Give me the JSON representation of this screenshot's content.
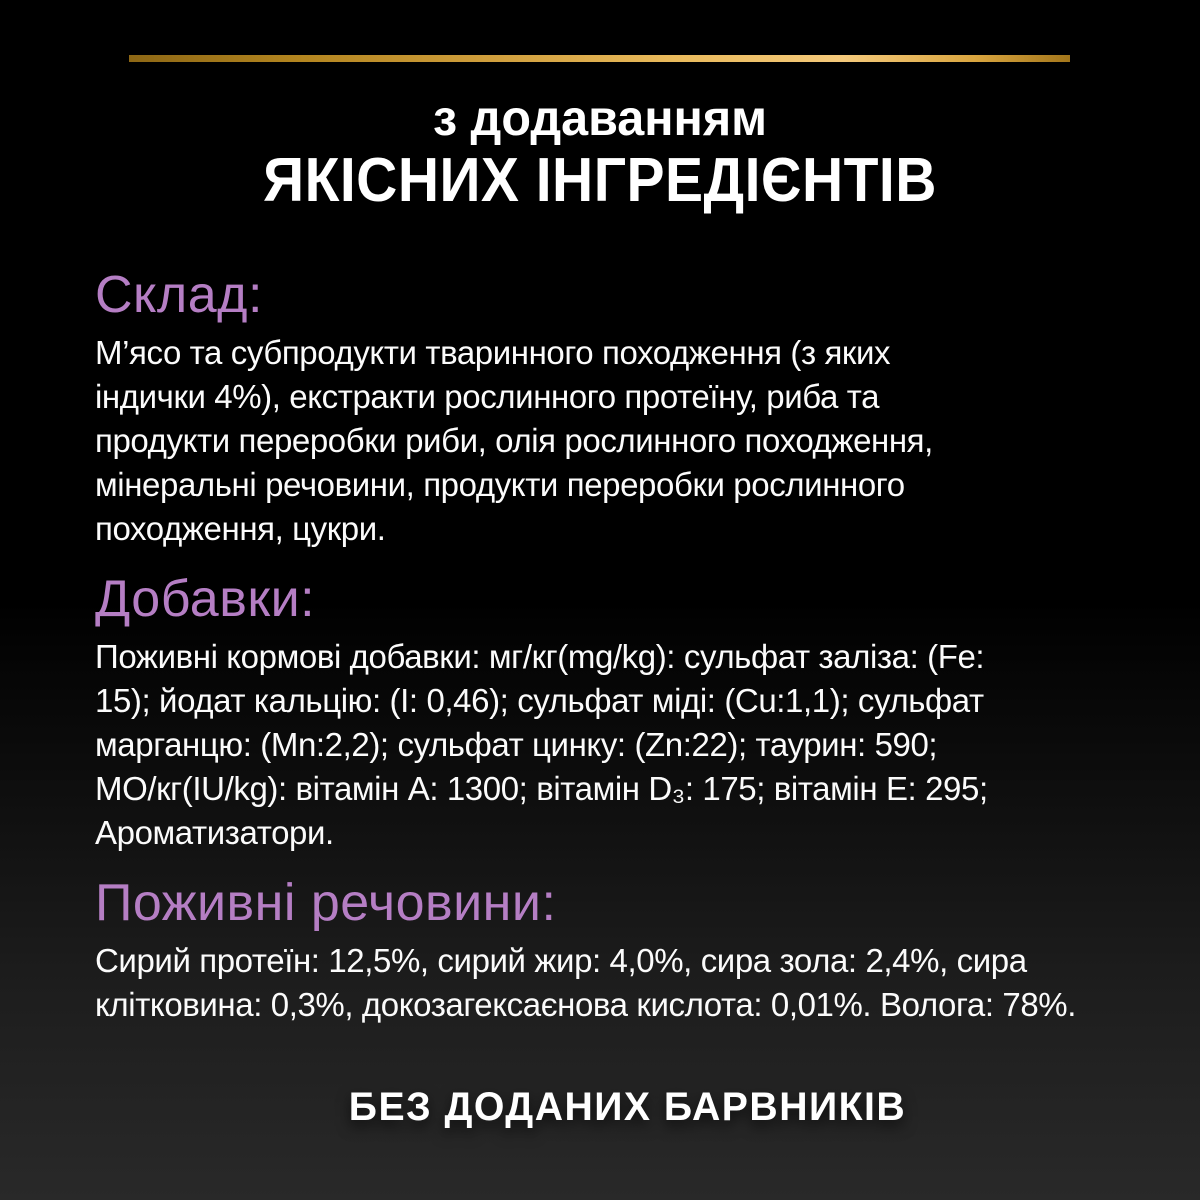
{
  "theme": {
    "background_top": "#000000",
    "background_bottom": "#292929",
    "gold_accent": "#d9a53f",
    "heading_purple": "#b57ec4",
    "text_white": "#ffffff"
  },
  "header": {
    "title_line1": "з додаванням",
    "title_line2": "ЯКІСНИХ ІНГРЕДІЄНТІВ"
  },
  "sections": [
    {
      "heading": "Склад:",
      "body": "М’ясо та субпродукти тваринного походження (з яких\nіндички 4%), екстракти рослинного протеїну, риба та\nпродукти переробки риби, олія рослинного походження,\nмінеральні речовини, продукти переробки рослинного\nпоходження, цукри."
    },
    {
      "heading": "Добавки:",
      "body": "Поживні кормові добавки: мг/кг(mg/kg): сульфат заліза: (Fe:\n15); йодат кальцію: (I: 0,46); сульфат міді: (Cu:1,1); сульфат\nмарганцю: (Mn:2,2); сульфат цинку: (Zn:22); таурин: 590;\nМО/кг(IU/kg): вітамін A: 1300; вітамін D₃: 175; вітамін E: 295;\nАроматизатори."
    },
    {
      "heading": "Поживні речовини:",
      "body": "Сирий протеїн: 12,5%, сирий жир: 4,0%, сира зола: 2,4%, сира\nклітковина: 0,3%, докозагексаєнова кислота: 0,01%. Волога: 78%."
    }
  ],
  "footer": {
    "claim": "БЕЗ ДОДАНИХ БАРВНИКІВ"
  }
}
